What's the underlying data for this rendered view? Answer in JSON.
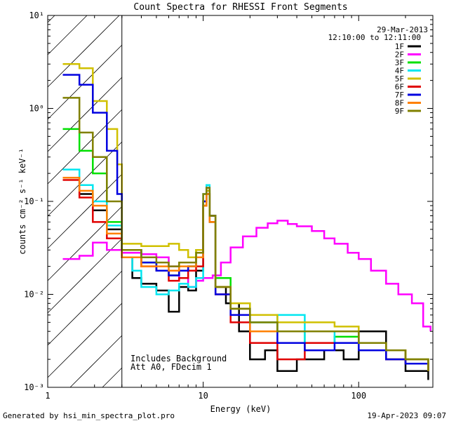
{
  "chart_data": {
    "type": "line",
    "title": "Count Spectra for RHESSI Front Segments",
    "xlabel": "Energy (keV)",
    "ylabel": "counts cm⁻² s⁻¹ keV⁻¹",
    "xscale": "log",
    "yscale": "log",
    "xlim": [
      1,
      300
    ],
    "ylim": [
      0.001,
      10
    ],
    "x_ticks": [
      {
        "value": 1,
        "label": "1"
      },
      {
        "value": 10,
        "label": "10"
      },
      {
        "value": 100,
        "label": "100"
      }
    ],
    "y_ticks": [
      {
        "value": 0.001,
        "label": "10⁻³"
      },
      {
        "value": 0.01,
        "label": "10⁻²"
      },
      {
        "value": 0.1,
        "label": "10⁻¹"
      },
      {
        "value": 1,
        "label": "10⁰"
      },
      {
        "value": 10,
        "label": "10¹"
      }
    ],
    "date": "29-Mar-2013",
    "time_range": "12:10:00 to 12:11:00",
    "annotations": [
      "Includes Background",
      "Att A0, FDecim 1"
    ],
    "hatched_region": {
      "x_from": 1,
      "x_to": 3
    },
    "series": [
      {
        "name": "1F",
        "color": "#000000",
        "points": [
          [
            1.25,
            0.18
          ],
          [
            1.6,
            0.12
          ],
          [
            1.95,
            0.08
          ],
          [
            2.4,
            0.05
          ],
          [
            3.0,
            0.025
          ],
          [
            3.5,
            0.015
          ],
          [
            4.0,
            0.013
          ],
          [
            5.0,
            0.011
          ],
          [
            6.0,
            0.0065
          ],
          [
            7.0,
            0.012
          ],
          [
            8.0,
            0.011
          ],
          [
            9.0,
            0.018
          ],
          [
            10.0,
            0.1
          ],
          [
            10.5,
            0.12
          ],
          [
            11.0,
            0.07
          ],
          [
            12.0,
            0.012
          ],
          [
            14.0,
            0.008
          ],
          [
            17.0,
            0.004
          ],
          [
            20.0,
            0.002
          ],
          [
            25.0,
            0.0025
          ],
          [
            30.0,
            0.0015
          ],
          [
            40.0,
            0.002
          ],
          [
            60.0,
            0.0025
          ],
          [
            80.0,
            0.002
          ],
          [
            100.0,
            0.004
          ],
          [
            150.0,
            0.002
          ],
          [
            200.0,
            0.0015
          ],
          [
            280.0,
            0.0012
          ]
        ]
      },
      {
        "name": "2F",
        "color": "#ff00ff",
        "points": [
          [
            1.25,
            0.024
          ],
          [
            1.6,
            0.026
          ],
          [
            1.95,
            0.036
          ],
          [
            2.4,
            0.03
          ],
          [
            3.0,
            0.028
          ],
          [
            4.0,
            0.027
          ],
          [
            5.0,
            0.025
          ],
          [
            6.0,
            0.02
          ],
          [
            7.0,
            0.015
          ],
          [
            8.0,
            0.012
          ],
          [
            9.0,
            0.014
          ],
          [
            10.0,
            0.015
          ],
          [
            11.5,
            0.016
          ],
          [
            13.0,
            0.022
          ],
          [
            15.0,
            0.032
          ],
          [
            18.0,
            0.042
          ],
          [
            22.0,
            0.052
          ],
          [
            26.0,
            0.058
          ],
          [
            30.0,
            0.062
          ],
          [
            35.0,
            0.057
          ],
          [
            40.0,
            0.054
          ],
          [
            50.0,
            0.048
          ],
          [
            60.0,
            0.04
          ],
          [
            70.0,
            0.035
          ],
          [
            85.0,
            0.028
          ],
          [
            100.0,
            0.024
          ],
          [
            120.0,
            0.018
          ],
          [
            150.0,
            0.013
          ],
          [
            180.0,
            0.01
          ],
          [
            220.0,
            0.008
          ],
          [
            260.0,
            0.0045
          ],
          [
            290.0,
            0.004
          ]
        ]
      },
      {
        "name": "3F",
        "color": "#00e000",
        "points": [
          [
            1.25,
            0.6
          ],
          [
            1.6,
            0.35
          ],
          [
            1.95,
            0.2
          ],
          [
            2.4,
            0.06
          ],
          [
            3.0,
            0.03
          ],
          [
            4.0,
            0.022
          ],
          [
            5.0,
            0.018
          ],
          [
            6.0,
            0.016
          ],
          [
            7.0,
            0.018
          ],
          [
            8.0,
            0.02
          ],
          [
            9.0,
            0.03
          ],
          [
            10.0,
            0.09
          ],
          [
            10.5,
            0.13
          ],
          [
            11.0,
            0.06
          ],
          [
            12.0,
            0.015
          ],
          [
            15.0,
            0.008
          ],
          [
            20.0,
            0.005
          ],
          [
            30.0,
            0.004
          ],
          [
            45.0,
            0.003
          ],
          [
            70.0,
            0.0035
          ],
          [
            100.0,
            0.003
          ],
          [
            150.0,
            0.0025
          ],
          [
            200.0,
            0.002
          ],
          [
            280.0,
            0.0015
          ]
        ]
      },
      {
        "name": "4F",
        "color": "#00e6f0",
        "points": [
          [
            1.25,
            0.22
          ],
          [
            1.6,
            0.15
          ],
          [
            1.95,
            0.1
          ],
          [
            2.4,
            0.055
          ],
          [
            3.0,
            0.025
          ],
          [
            3.5,
            0.018
          ],
          [
            4.0,
            0.012
          ],
          [
            5.0,
            0.01
          ],
          [
            6.0,
            0.011
          ],
          [
            7.0,
            0.013
          ],
          [
            8.0,
            0.012
          ],
          [
            9.0,
            0.015
          ],
          [
            10.0,
            0.12
          ],
          [
            10.5,
            0.15
          ],
          [
            11.0,
            0.06
          ],
          [
            12.0,
            0.012
          ],
          [
            15.0,
            0.007
          ],
          [
            20.0,
            0.005
          ],
          [
            30.0,
            0.006
          ],
          [
            45.0,
            0.003
          ],
          [
            70.0,
            0.004
          ],
          [
            100.0,
            0.003
          ],
          [
            150.0,
            0.0025
          ],
          [
            200.0,
            0.002
          ],
          [
            280.0,
            0.0015
          ]
        ]
      },
      {
        "name": "5F",
        "color": "#d0c000",
        "points": [
          [
            1.25,
            3.0
          ],
          [
            1.6,
            2.7
          ],
          [
            1.95,
            1.2
          ],
          [
            2.4,
            0.6
          ],
          [
            2.8,
            0.25
          ],
          [
            3.0,
            0.035
          ],
          [
            4.0,
            0.033
          ],
          [
            5.0,
            0.033
          ],
          [
            6.0,
            0.035
          ],
          [
            7.0,
            0.03
          ],
          [
            8.0,
            0.025
          ],
          [
            9.0,
            0.03
          ],
          [
            10.0,
            0.1
          ],
          [
            10.5,
            0.13
          ],
          [
            11.0,
            0.07
          ],
          [
            12.0,
            0.012
          ],
          [
            15.0,
            0.008
          ],
          [
            20.0,
            0.006
          ],
          [
            30.0,
            0.005
          ],
          [
            45.0,
            0.005
          ],
          [
            70.0,
            0.0045
          ],
          [
            100.0,
            0.003
          ],
          [
            150.0,
            0.0025
          ],
          [
            200.0,
            0.002
          ],
          [
            280.0,
            0.0015
          ]
        ]
      },
      {
        "name": "6F",
        "color": "#e00000",
        "points": [
          [
            1.25,
            0.17
          ],
          [
            1.6,
            0.11
          ],
          [
            1.95,
            0.06
          ],
          [
            2.4,
            0.04
          ],
          [
            3.0,
            0.025
          ],
          [
            4.0,
            0.02
          ],
          [
            5.0,
            0.018
          ],
          [
            6.0,
            0.014
          ],
          [
            7.0,
            0.015
          ],
          [
            8.0,
            0.018
          ],
          [
            9.0,
            0.02
          ],
          [
            10.0,
            0.09
          ],
          [
            10.5,
            0.12
          ],
          [
            11.0,
            0.06
          ],
          [
            12.0,
            0.01
          ],
          [
            15.0,
            0.005
          ],
          [
            20.0,
            0.003
          ],
          [
            30.0,
            0.002
          ],
          [
            45.0,
            0.003
          ],
          [
            70.0,
            0.003
          ],
          [
            100.0,
            0.003
          ],
          [
            150.0,
            0.002
          ],
          [
            200.0,
            0.0018
          ],
          [
            280.0,
            0.0015
          ]
        ]
      },
      {
        "name": "7F",
        "color": "#0000e0",
        "points": [
          [
            1.25,
            2.3
          ],
          [
            1.6,
            1.8
          ],
          [
            1.95,
            0.9
          ],
          [
            2.4,
            0.35
          ],
          [
            2.8,
            0.12
          ],
          [
            3.0,
            0.03
          ],
          [
            4.0,
            0.022
          ],
          [
            5.0,
            0.018
          ],
          [
            6.0,
            0.016
          ],
          [
            7.0,
            0.018
          ],
          [
            8.0,
            0.02
          ],
          [
            9.0,
            0.025
          ],
          [
            10.0,
            0.1
          ],
          [
            10.5,
            0.14
          ],
          [
            11.0,
            0.07
          ],
          [
            12.0,
            0.01
          ],
          [
            15.0,
            0.006
          ],
          [
            20.0,
            0.004
          ],
          [
            30.0,
            0.003
          ],
          [
            45.0,
            0.0025
          ],
          [
            70.0,
            0.003
          ],
          [
            100.0,
            0.0025
          ],
          [
            150.0,
            0.002
          ],
          [
            200.0,
            0.0018
          ],
          [
            280.0,
            0.0015
          ]
        ]
      },
      {
        "name": "8F",
        "color": "#ff8000",
        "points": [
          [
            1.25,
            0.18
          ],
          [
            1.6,
            0.13
          ],
          [
            1.95,
            0.09
          ],
          [
            2.4,
            0.045
          ],
          [
            3.0,
            0.025
          ],
          [
            4.0,
            0.02
          ],
          [
            5.0,
            0.02
          ],
          [
            6.0,
            0.018
          ],
          [
            7.0,
            0.02
          ],
          [
            8.0,
            0.02
          ],
          [
            9.0,
            0.025
          ],
          [
            10.0,
            0.09
          ],
          [
            10.5,
            0.12
          ],
          [
            11.0,
            0.06
          ],
          [
            12.0,
            0.012
          ],
          [
            15.0,
            0.007
          ],
          [
            20.0,
            0.004
          ],
          [
            30.0,
            0.004
          ],
          [
            45.0,
            0.004
          ],
          [
            70.0,
            0.004
          ],
          [
            100.0,
            0.003
          ],
          [
            150.0,
            0.0025
          ],
          [
            200.0,
            0.002
          ],
          [
            280.0,
            0.0015
          ]
        ]
      },
      {
        "name": "9F",
        "color": "#808000",
        "points": [
          [
            1.25,
            1.3
          ],
          [
            1.6,
            0.55
          ],
          [
            1.95,
            0.3
          ],
          [
            2.4,
            0.1
          ],
          [
            3.0,
            0.03
          ],
          [
            4.0,
            0.025
          ],
          [
            5.0,
            0.022
          ],
          [
            6.0,
            0.02
          ],
          [
            7.0,
            0.022
          ],
          [
            8.0,
            0.022
          ],
          [
            9.0,
            0.028
          ],
          [
            10.0,
            0.12
          ],
          [
            10.5,
            0.14
          ],
          [
            11.0,
            0.07
          ],
          [
            12.0,
            0.012
          ],
          [
            15.0,
            0.007
          ],
          [
            20.0,
            0.005
          ],
          [
            30.0,
            0.004
          ],
          [
            45.0,
            0.004
          ],
          [
            70.0,
            0.004
          ],
          [
            100.0,
            0.003
          ],
          [
            150.0,
            0.0025
          ],
          [
            200.0,
            0.002
          ],
          [
            280.0,
            0.0015
          ]
        ]
      }
    ]
  },
  "footer": {
    "generated_by": "Generated by hsi_min_spectra_plot.pro",
    "timestamp": "19-Apr-2023 09:07"
  }
}
